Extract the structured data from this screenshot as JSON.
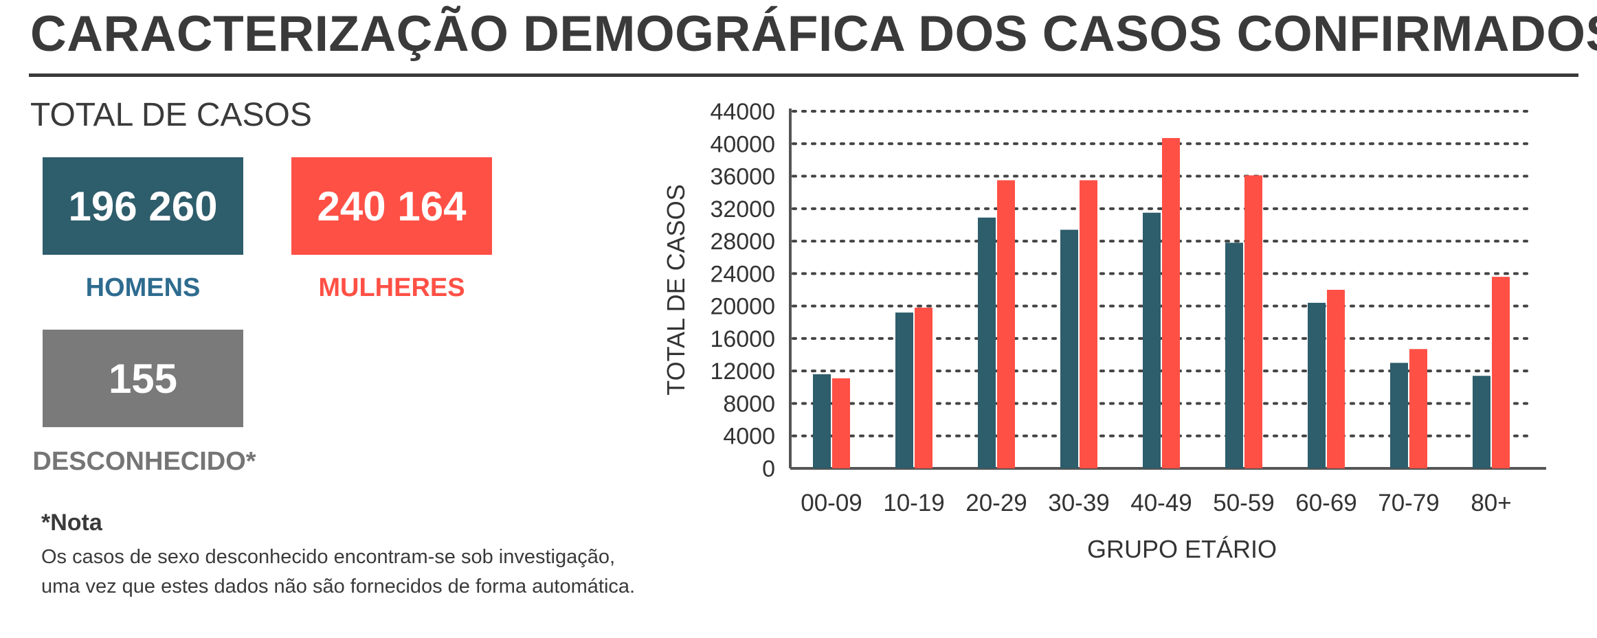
{
  "title": "CARACTERIZAÇÃO DEMOGRÁFICA DOS CASOS CONFIRMADOS",
  "totals": {
    "heading": "TOTAL DE CASOS",
    "men": {
      "value": "196 260",
      "label": "HOMENS",
      "color": "#2e5d6b",
      "label_color": "#2e6b8f"
    },
    "women": {
      "value": "240 164",
      "label": "MULHERES",
      "color": "#ff5045",
      "label_color": "#ff5045"
    },
    "unknown": {
      "value": "155",
      "label": "DESCONHECIDO*",
      "color": "#7a7a7a",
      "label_color": "#757575"
    }
  },
  "note": {
    "title": "*Nota",
    "lines": [
      "Os casos de sexo desconhecido encontram-se sob investigação,",
      "uma vez que estes dados não são fornecidos de forma automática."
    ]
  },
  "chart_data": {
    "type": "bar",
    "categories": [
      "00-09",
      "10-19",
      "20-29",
      "30-39",
      "40-49",
      "50-59",
      "60-69",
      "70-79",
      "80+"
    ],
    "series": [
      {
        "values": [
          11600,
          19200,
          30900,
          29400,
          31500,
          27800,
          20400,
          13000,
          11400
        ],
        "color": "#2e5d6b"
      },
      {
        "values": [
          11100,
          19800,
          35500,
          35500,
          40700,
          36100,
          22000,
          14700,
          23600
        ],
        "color": "#ff5045"
      }
    ],
    "xlabel": "GRUPO ETÁRIO",
    "ylabel": "TOTAL DE CASOS",
    "ylim": [
      0,
      44000
    ],
    "yticks": [
      0,
      4000,
      8000,
      12000,
      16000,
      20000,
      24000,
      28000,
      32000,
      36000,
      40000,
      44000
    ],
    "grid": true,
    "grid_style": "dotted",
    "legend": "none"
  }
}
